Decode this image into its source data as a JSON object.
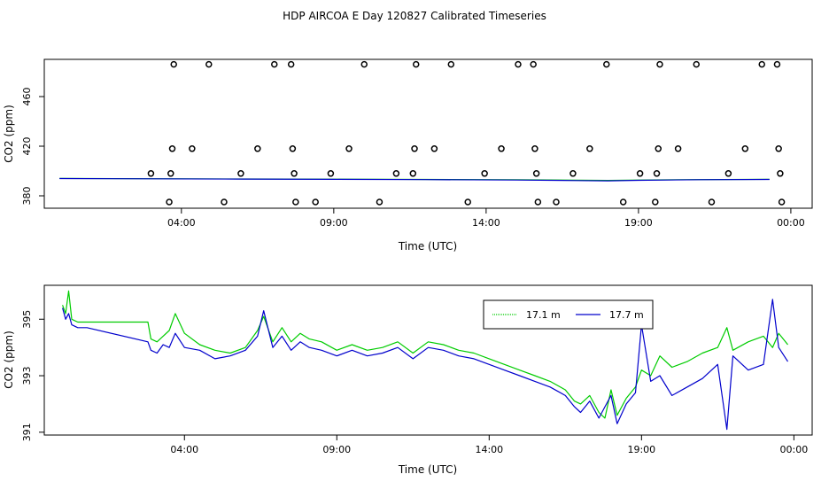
{
  "title": "HDP AIRCOA E  Day 120827  Calibrated Timeseries",
  "chart_data": [
    {
      "type": "scatter",
      "xlabel": "Time (UTC)",
      "ylabel": "CO2 (ppm)",
      "x_unit": "hours UTC",
      "xlim": [
        -0.5,
        24.7
      ],
      "ylim": [
        370,
        490
      ],
      "xticks": [
        4,
        9,
        14,
        19,
        24
      ],
      "xtick_labels": [
        "04:00",
        "09:00",
        "14:00",
        "19:00",
        "00:00"
      ],
      "yticks": [
        380,
        420,
        460
      ],
      "ytick_labels": [
        "380",
        "420",
        "460"
      ],
      "calibration_points": [
        {
          "x": 3.0,
          "y": 398
        },
        {
          "x": 3.6,
          "y": 375
        },
        {
          "x": 3.65,
          "y": 398
        },
        {
          "x": 3.7,
          "y": 418
        },
        {
          "x": 3.75,
          "y": 486
        },
        {
          "x": 4.35,
          "y": 418
        },
        {
          "x": 4.9,
          "y": 486
        },
        {
          "x": 5.4,
          "y": 375
        },
        {
          "x": 5.95,
          "y": 398
        },
        {
          "x": 6.5,
          "y": 418
        },
        {
          "x": 7.05,
          "y": 486
        },
        {
          "x": 7.6,
          "y": 486
        },
        {
          "x": 7.65,
          "y": 418
        },
        {
          "x": 7.7,
          "y": 398
        },
        {
          "x": 7.75,
          "y": 375
        },
        {
          "x": 8.4,
          "y": 375
        },
        {
          "x": 8.9,
          "y": 398
        },
        {
          "x": 9.5,
          "y": 418
        },
        {
          "x": 10.0,
          "y": 486
        },
        {
          "x": 10.5,
          "y": 375
        },
        {
          "x": 11.05,
          "y": 398
        },
        {
          "x": 11.6,
          "y": 398
        },
        {
          "x": 11.65,
          "y": 418
        },
        {
          "x": 11.7,
          "y": 486
        },
        {
          "x": 12.3,
          "y": 418
        },
        {
          "x": 12.85,
          "y": 486
        },
        {
          "x": 13.4,
          "y": 375
        },
        {
          "x": 13.95,
          "y": 398
        },
        {
          "x": 14.5,
          "y": 418
        },
        {
          "x": 15.05,
          "y": 486
        },
        {
          "x": 15.55,
          "y": 486
        },
        {
          "x": 15.6,
          "y": 418
        },
        {
          "x": 15.65,
          "y": 398
        },
        {
          "x": 15.7,
          "y": 375
        },
        {
          "x": 16.3,
          "y": 375
        },
        {
          "x": 16.85,
          "y": 398
        },
        {
          "x": 17.4,
          "y": 418
        },
        {
          "x": 17.95,
          "y": 486
        },
        {
          "x": 18.5,
          "y": 375
        },
        {
          "x": 19.05,
          "y": 398
        },
        {
          "x": 19.55,
          "y": 375
        },
        {
          "x": 19.6,
          "y": 398
        },
        {
          "x": 19.65,
          "y": 418
        },
        {
          "x": 19.7,
          "y": 486
        },
        {
          "x": 20.3,
          "y": 418
        },
        {
          "x": 20.9,
          "y": 486
        },
        {
          "x": 21.4,
          "y": 375
        },
        {
          "x": 21.95,
          "y": 398
        },
        {
          "x": 22.5,
          "y": 418
        },
        {
          "x": 23.05,
          "y": 486
        },
        {
          "x": 23.55,
          "y": 486
        },
        {
          "x": 23.6,
          "y": 418
        },
        {
          "x": 23.65,
          "y": 398
        },
        {
          "x": 23.7,
          "y": 375
        }
      ],
      "series": [
        {
          "name": "17.1 m",
          "color": "#00cc00",
          "x": [
            0,
            3,
            6,
            9,
            12,
            15,
            17,
            18,
            19,
            21,
            23.3
          ],
          "y": [
            394,
            393.8,
            393.6,
            393.4,
            393.2,
            392.9,
            392.6,
            392.4,
            392.7,
            393.1,
            393.3
          ]
        },
        {
          "name": "17.7 m",
          "color": "#0000cc",
          "x": [
            0,
            3,
            6,
            9,
            12,
            15,
            17,
            18,
            19,
            21,
            23.3
          ],
          "y": [
            393.9,
            393.7,
            393.5,
            393.3,
            393.1,
            392.7,
            392.3,
            392.1,
            392.5,
            393.0,
            393.2
          ]
        }
      ]
    },
    {
      "type": "line",
      "xlabel": "Time (UTC)",
      "ylabel": "CO2 (ppm)",
      "x_unit": "hours UTC",
      "xlim": [
        -0.6,
        24.6
      ],
      "ylim": [
        390.9,
        396.2
      ],
      "xticks": [
        4,
        9,
        14,
        19,
        24
      ],
      "xtick_labels": [
        "04:00",
        "09:00",
        "14:00",
        "19:00",
        "00:00"
      ],
      "yticks": [
        391,
        393,
        395
      ],
      "ytick_labels": [
        "391",
        "393",
        "395"
      ],
      "legend": "top-right",
      "series": [
        {
          "name": "17.1 m",
          "color": "#00cc00",
          "x": [
            0,
            0.1,
            0.2,
            0.3,
            0.5,
            0.8,
            2.8,
            2.9,
            3.1,
            3.3,
            3.5,
            3.7,
            4.0,
            4.5,
            5.0,
            5.5,
            6.0,
            6.4,
            6.6,
            6.9,
            7.2,
            7.5,
            7.8,
            8.1,
            8.5,
            9.0,
            9.5,
            10.0,
            10.5,
            11.0,
            11.5,
            12.0,
            12.5,
            13.0,
            13.5,
            14.0,
            14.5,
            15.0,
            15.5,
            16.0,
            16.5,
            16.8,
            17.0,
            17.3,
            17.6,
            17.8,
            18.0,
            18.2,
            18.5,
            18.8,
            19.0,
            19.3,
            19.6,
            20.0,
            20.5,
            21.0,
            21.5,
            21.8,
            22.0,
            22.5,
            23.0,
            23.3,
            23.5,
            23.8
          ],
          "y": [
            395.5,
            395.2,
            396.0,
            395.0,
            394.9,
            394.9,
            394.9,
            394.3,
            394.2,
            394.4,
            394.6,
            395.2,
            394.5,
            394.1,
            393.9,
            393.8,
            394.0,
            394.6,
            395.1,
            394.2,
            394.7,
            394.2,
            394.5,
            394.3,
            394.2,
            393.9,
            394.1,
            393.9,
            394.0,
            394.2,
            393.8,
            394.2,
            394.1,
            393.9,
            393.8,
            393.6,
            393.4,
            393.2,
            393.0,
            392.8,
            392.5,
            392.1,
            392.0,
            392.3,
            391.7,
            391.5,
            392.5,
            391.6,
            392.2,
            392.6,
            393.2,
            393.0,
            393.7,
            393.3,
            393.5,
            393.8,
            394.0,
            394.7,
            393.9,
            394.2,
            394.4,
            394.0,
            394.5,
            394.1
          ]
        },
        {
          "name": "17.7 m",
          "color": "#0000cc",
          "x": [
            0,
            0.1,
            0.2,
            0.3,
            0.5,
            0.8,
            2.8,
            2.9,
            3.1,
            3.3,
            3.5,
            3.7,
            4.0,
            4.5,
            5.0,
            5.5,
            6.0,
            6.4,
            6.6,
            6.9,
            7.2,
            7.5,
            7.8,
            8.1,
            8.5,
            9.0,
            9.5,
            10.0,
            10.5,
            11.0,
            11.5,
            12.0,
            12.5,
            13.0,
            13.5,
            14.0,
            14.5,
            15.0,
            15.5,
            16.0,
            16.5,
            16.8,
            17.0,
            17.3,
            17.6,
            17.8,
            18.0,
            18.2,
            18.5,
            18.8,
            19.0,
            19.3,
            19.6,
            20.0,
            20.5,
            21.0,
            21.5,
            21.8,
            22.0,
            22.5,
            23.0,
            23.3,
            23.5,
            23.8
          ],
          "y": [
            395.4,
            395.0,
            395.2,
            394.8,
            394.7,
            394.7,
            394.2,
            393.9,
            393.8,
            394.1,
            394.0,
            394.5,
            394.0,
            393.9,
            393.6,
            393.7,
            393.9,
            394.4,
            395.3,
            394.0,
            394.4,
            393.9,
            394.2,
            394.0,
            393.9,
            393.7,
            393.9,
            393.7,
            393.8,
            394.0,
            393.6,
            394.0,
            393.9,
            393.7,
            393.6,
            393.4,
            393.2,
            393.0,
            392.8,
            392.6,
            392.3,
            391.9,
            391.7,
            392.1,
            391.5,
            391.9,
            392.3,
            391.3,
            392.0,
            392.4,
            394.8,
            392.8,
            393.0,
            392.3,
            392.6,
            392.9,
            393.4,
            391.1,
            393.7,
            393.2,
            393.4,
            395.7,
            394.0,
            393.5
          ]
        }
      ]
    }
  ]
}
